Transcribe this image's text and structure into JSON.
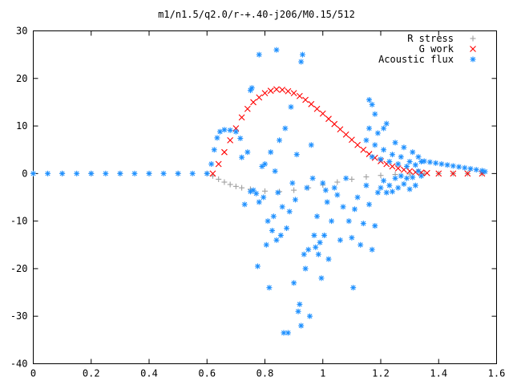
{
  "chart_data": {
    "type": "scatter",
    "title": "m1/n1.5/q2.0/r-+.40-j206/M0.15/512",
    "xlabel": "",
    "ylabel": "",
    "xlim": [
      0,
      1.6
    ],
    "ylim": [
      -40,
      30
    ],
    "xticks": [
      0,
      0.2,
      0.4,
      0.6,
      0.8,
      1,
      1.2,
      1.4,
      1.6
    ],
    "xtick_labels": [
      "0",
      "0.2",
      "0.4",
      "0.6",
      "0.8",
      "1",
      "1.2",
      "1.4",
      "1.6"
    ],
    "yticks": [
      -40,
      -30,
      -20,
      -10,
      0,
      10,
      20,
      30
    ],
    "ytick_labels": [
      "-40",
      "-30",
      "-20",
      "-10",
      "0",
      "10",
      "20",
      "30"
    ],
    "grid": false,
    "legend_position": "top-right",
    "series": [
      {
        "name": "R stress",
        "marker": "plus",
        "color": "#a0a0a0",
        "points": [
          [
            0,
            0
          ],
          [
            0.1,
            0
          ],
          [
            0.2,
            0
          ],
          [
            0.3,
            0
          ],
          [
            0.4,
            0
          ],
          [
            0.5,
            0
          ],
          [
            0.6,
            0
          ],
          [
            0.62,
            -0.5
          ],
          [
            0.64,
            -1.2
          ],
          [
            0.66,
            -1.8
          ],
          [
            0.68,
            -2.3
          ],
          [
            0.7,
            -2.7
          ],
          [
            0.72,
            -3
          ],
          [
            0.75,
            -3.3
          ],
          [
            0.8,
            -3.7
          ],
          [
            0.85,
            -3.8
          ],
          [
            0.9,
            -3.5
          ],
          [
            0.95,
            -3
          ],
          [
            1,
            -2.4
          ],
          [
            1.05,
            -1.8
          ],
          [
            1.1,
            -1.2
          ],
          [
            1.15,
            -0.7
          ],
          [
            1.2,
            -0.4
          ],
          [
            1.25,
            -0.2
          ],
          [
            1.3,
            -0.1
          ],
          [
            1.35,
            0
          ],
          [
            1.4,
            0
          ],
          [
            1.45,
            0
          ],
          [
            1.5,
            0
          ],
          [
            1.55,
            0
          ]
        ]
      },
      {
        "name": "G work",
        "marker": "cross",
        "color": "#ff0000",
        "points": [
          [
            0.62,
            0
          ],
          [
            0.64,
            2
          ],
          [
            0.66,
            4.5
          ],
          [
            0.68,
            7
          ],
          [
            0.7,
            9.5
          ],
          [
            0.72,
            11.8
          ],
          [
            0.74,
            13.6
          ],
          [
            0.76,
            15
          ],
          [
            0.78,
            16
          ],
          [
            0.8,
            16.9
          ],
          [
            0.82,
            17.4
          ],
          [
            0.84,
            17.7
          ],
          [
            0.86,
            17.6
          ],
          [
            0.88,
            17.3
          ],
          [
            0.9,
            16.9
          ],
          [
            0.92,
            16.3
          ],
          [
            0.94,
            15.5
          ],
          [
            0.96,
            14.6
          ],
          [
            0.98,
            13.6
          ],
          [
            1,
            12.6
          ],
          [
            1.02,
            11.5
          ],
          [
            1.04,
            10.4
          ],
          [
            1.06,
            9.3
          ],
          [
            1.08,
            8.2
          ],
          [
            1.1,
            7.1
          ],
          [
            1.12,
            6
          ],
          [
            1.14,
            5
          ],
          [
            1.16,
            4.1
          ],
          [
            1.18,
            3.3
          ],
          [
            1.2,
            2.6
          ],
          [
            1.22,
            2
          ],
          [
            1.24,
            1.5
          ],
          [
            1.26,
            1.1
          ],
          [
            1.28,
            0.8
          ],
          [
            1.3,
            0.5
          ],
          [
            1.32,
            0.3
          ],
          [
            1.34,
            0.2
          ],
          [
            1.36,
            0.1
          ],
          [
            1.4,
            0
          ],
          [
            1.45,
            0
          ],
          [
            1.5,
            0
          ],
          [
            1.55,
            0
          ]
        ]
      },
      {
        "name": "Acoustic flux",
        "marker": "star",
        "color": "#1e90ff",
        "points": [
          [
            0,
            0
          ],
          [
            0.05,
            0
          ],
          [
            0.1,
            0
          ],
          [
            0.15,
            0
          ],
          [
            0.2,
            0
          ],
          [
            0.25,
            0
          ],
          [
            0.3,
            0
          ],
          [
            0.35,
            0
          ],
          [
            0.4,
            0
          ],
          [
            0.45,
            0
          ],
          [
            0.5,
            0
          ],
          [
            0.55,
            0
          ],
          [
            0.6,
            0
          ],
          [
            0.615,
            2
          ],
          [
            0.625,
            5
          ],
          [
            0.635,
            7.5
          ],
          [
            0.645,
            8.8
          ],
          [
            0.66,
            9.2
          ],
          [
            0.68,
            9.1
          ],
          [
            0.7,
            8.8
          ],
          [
            0.715,
            7.4
          ],
          [
            0.72,
            3.4
          ],
          [
            0.73,
            -6.5
          ],
          [
            0.74,
            4.5
          ],
          [
            0.75,
            -3.8
          ],
          [
            0.75,
            17.5
          ],
          [
            0.755,
            18
          ],
          [
            0.76,
            -3.5
          ],
          [
            0.77,
            -4.2
          ],
          [
            0.775,
            -19.5
          ],
          [
            0.78,
            25
          ],
          [
            0.78,
            -6
          ],
          [
            0.79,
            1.5
          ],
          [
            0.795,
            -5
          ],
          [
            0.8,
            2
          ],
          [
            0.805,
            -15
          ],
          [
            0.81,
            -10
          ],
          [
            0.815,
            -24
          ],
          [
            0.82,
            4.5
          ],
          [
            0.825,
            -12
          ],
          [
            0.83,
            -9
          ],
          [
            0.835,
            0.5
          ],
          [
            0.84,
            26
          ],
          [
            0.84,
            -14
          ],
          [
            0.845,
            -4
          ],
          [
            0.85,
            7
          ],
          [
            0.855,
            -13
          ],
          [
            0.86,
            -7
          ],
          [
            0.865,
            -33.5
          ],
          [
            0.87,
            9.5
          ],
          [
            0.875,
            -11.5
          ],
          [
            0.88,
            -33.5
          ],
          [
            0.885,
            -8
          ],
          [
            0.89,
            14
          ],
          [
            0.895,
            -2
          ],
          [
            0.9,
            -23
          ],
          [
            0.905,
            -5.5
          ],
          [
            0.91,
            4
          ],
          [
            0.915,
            -29
          ],
          [
            0.92,
            -27.5
          ],
          [
            0.925,
            23.5
          ],
          [
            0.925,
            -32
          ],
          [
            0.93,
            25
          ],
          [
            0.935,
            -17
          ],
          [
            0.94,
            -20
          ],
          [
            0.945,
            -3
          ],
          [
            0.95,
            -16
          ],
          [
            0.955,
            -30
          ],
          [
            0.96,
            6
          ],
          [
            0.965,
            -1
          ],
          [
            0.97,
            -13
          ],
          [
            0.975,
            -15.5
          ],
          [
            0.98,
            -9
          ],
          [
            0.985,
            -17
          ],
          [
            0.99,
            -14.5
          ],
          [
            0.995,
            -22
          ],
          [
            1,
            -2
          ],
          [
            1.005,
            -13
          ],
          [
            1.01,
            -3.5
          ],
          [
            1.015,
            -6
          ],
          [
            1.02,
            -18
          ],
          [
            1.03,
            -10
          ],
          [
            1.04,
            -3
          ],
          [
            1.05,
            -4.5
          ],
          [
            1.06,
            -14
          ],
          [
            1.07,
            -7
          ],
          [
            1.08,
            -1
          ],
          [
            1.09,
            -10
          ],
          [
            1.1,
            -13.5
          ],
          [
            1.105,
            -24
          ],
          [
            1.11,
            -7.5
          ],
          [
            1.12,
            -5
          ],
          [
            1.13,
            -15
          ],
          [
            1.14,
            -10.5
          ],
          [
            1.15,
            -2.5
          ],
          [
            1.16,
            -6.5
          ],
          [
            1.17,
            -16
          ],
          [
            1.18,
            -11
          ],
          [
            1.19,
            -4
          ],
          [
            1.2,
            -3
          ],
          [
            1.21,
            -1.5
          ],
          [
            1.22,
            -4
          ],
          [
            1.23,
            -2.5
          ],
          [
            1.24,
            -3.8
          ],
          [
            1.25,
            -1
          ],
          [
            1.26,
            -3
          ],
          [
            1.27,
            -0.5
          ],
          [
            1.28,
            -2.2
          ],
          [
            1.29,
            -1
          ],
          [
            1.3,
            -3.3
          ],
          [
            1.31,
            -0.8
          ],
          [
            1.32,
            -2.5
          ],
          [
            1.33,
            0.5
          ],
          [
            1.34,
            -0.5
          ],
          [
            1.15,
            7
          ],
          [
            1.16,
            9.5
          ],
          [
            1.17,
            3.5
          ],
          [
            1.18,
            6
          ],
          [
            1.19,
            8.5
          ],
          [
            1.2,
            3
          ],
          [
            1.21,
            5
          ],
          [
            1.22,
            10.5
          ],
          [
            1.23,
            2.5
          ],
          [
            1.24,
            4
          ],
          [
            1.25,
            6.5
          ],
          [
            1.26,
            2
          ],
          [
            1.27,
            3.5
          ],
          [
            1.28,
            5.5
          ],
          [
            1.29,
            1.5
          ],
          [
            1.3,
            2.5
          ],
          [
            1.31,
            4.5
          ],
          [
            1.32,
            1.8
          ],
          [
            1.33,
            3.5
          ],
          [
            1.34,
            2.5
          ],
          [
            1.16,
            15.5
          ],
          [
            1.17,
            14.5
          ],
          [
            1.18,
            12.5
          ],
          [
            1.21,
            9.5
          ],
          [
            1.35,
            2.6
          ],
          [
            1.37,
            2.4
          ],
          [
            1.39,
            2.2
          ],
          [
            1.41,
            2
          ],
          [
            1.43,
            1.8
          ],
          [
            1.45,
            1.6
          ],
          [
            1.47,
            1.4
          ],
          [
            1.49,
            1.2
          ],
          [
            1.51,
            1
          ],
          [
            1.53,
            0.8
          ],
          [
            1.55,
            0.6
          ],
          [
            1.56,
            0.4
          ]
        ]
      }
    ]
  }
}
